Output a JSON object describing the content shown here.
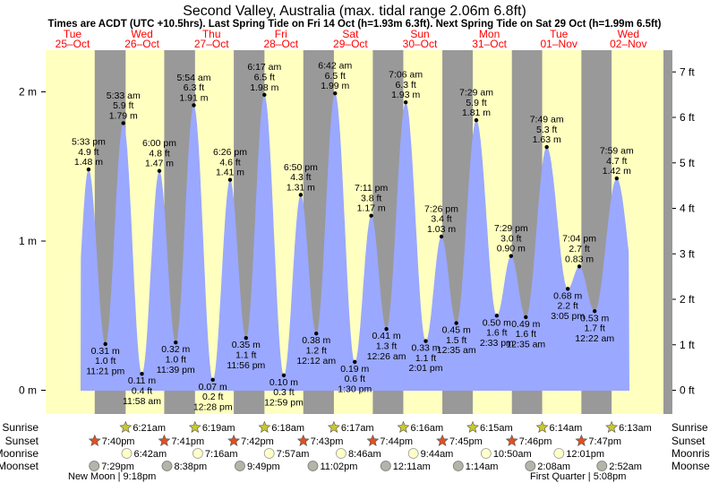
{
  "chart_data": {
    "type": "area",
    "title": "Second Valley, Australia (max. tidal range 2.06m 6.8ft)",
    "subtitle": "Times are ACDT (UTC +10.5hrs). Last Spring Tide on Fri 14 Oct (h=1.93m 6.3ft). Next Spring Tide on Sat 29 Oct (h=1.99m 6.5ft)",
    "days": [
      {
        "dow": "Tue",
        "date": "25–Oct"
      },
      {
        "dow": "Wed",
        "date": "26–Oct"
      },
      {
        "dow": "Thu",
        "date": "27–Oct"
      },
      {
        "dow": "Fri",
        "date": "28–Oct"
      },
      {
        "dow": "Sat",
        "date": "29–Oct"
      },
      {
        "dow": "Sun",
        "date": "30–Oct"
      },
      {
        "dow": "Mon",
        "date": "31–Oct"
      },
      {
        "dow": "Tue",
        "date": "01–Nov"
      },
      {
        "dow": "Wed",
        "date": "02–Nov"
      }
    ],
    "left_axis": {
      "unit": "m",
      "ticks": [
        "0 m",
        "1 m",
        "2 m"
      ],
      "values": [
        0,
        1,
        2
      ]
    },
    "right_axis": {
      "unit": "ft",
      "ticks": [
        "0 ft",
        "1 ft",
        "2 ft",
        "3 ft",
        "4 ft",
        "5 ft",
        "6 ft",
        "7 ft"
      ],
      "values": [
        0,
        1,
        2,
        3,
        4,
        5,
        6,
        7
      ]
    },
    "ylim_m": [
      -0.15,
      2.3
    ],
    "night_periods": [
      [
        "2022-10-25 19:40",
        "2022-10-26 06:21"
      ],
      [
        "2022-10-26 19:41",
        "2022-10-27 06:19"
      ],
      [
        "2022-10-27 19:42",
        "2022-10-28 06:18"
      ],
      [
        "2022-10-28 19:43",
        "2022-10-29 06:17"
      ],
      [
        "2022-10-29 19:44",
        "2022-10-30 06:16"
      ],
      [
        "2022-10-30 19:45",
        "2022-10-31 06:15"
      ],
      [
        "2022-10-31 19:46",
        "2022-11-01 06:14"
      ],
      [
        "2022-11-01 19:47",
        "2022-11-02 06:13"
      ]
    ],
    "extremes": [
      {
        "t": "2022-10-25 17:33",
        "m": 1.48,
        "label": [
          "5:33 pm",
          "4.9 ft",
          "1.48 m"
        ],
        "pos": "above"
      },
      {
        "t": "2022-10-25 23:21",
        "m": 0.31,
        "label": [
          "0.31 m",
          "1.0 ft",
          "11:21 pm"
        ],
        "pos": "below"
      },
      {
        "t": "2022-10-26 05:33",
        "m": 1.79,
        "label": [
          "5:33 am",
          "5.9 ft",
          "1.79 m"
        ],
        "pos": "above"
      },
      {
        "t": "2022-10-26 11:58",
        "m": 0.11,
        "label": [
          "0.11 m",
          "0.4 ft",
          "11:58 am"
        ],
        "pos": "below"
      },
      {
        "t": "2022-10-26 18:00",
        "m": 1.47,
        "label": [
          "6:00 pm",
          "4.8 ft",
          "1.47 m"
        ],
        "pos": "above"
      },
      {
        "t": "2022-10-26 23:39",
        "m": 0.32,
        "label": [
          "0.32 m",
          "1.0 ft",
          "11:39 pm"
        ],
        "pos": "below"
      },
      {
        "t": "2022-10-27 05:54",
        "m": 1.91,
        "label": [
          "5:54 am",
          "6.3 ft",
          "1.91 m"
        ],
        "pos": "above"
      },
      {
        "t": "2022-10-27 12:28",
        "m": 0.07,
        "label": [
          "0.07 m",
          "0.2 ft",
          "12:28 pm"
        ],
        "pos": "below"
      },
      {
        "t": "2022-10-27 18:26",
        "m": 1.41,
        "label": [
          "6:26 pm",
          "4.6 ft",
          "1.41 m"
        ],
        "pos": "above"
      },
      {
        "t": "2022-10-27 23:56",
        "m": 0.35,
        "label": [
          "0.35 m",
          "1.1 ft",
          "11:56 pm"
        ],
        "pos": "below"
      },
      {
        "t": "2022-10-28 06:17",
        "m": 1.98,
        "label": [
          "6:17 am",
          "6.5 ft",
          "1.98 m"
        ],
        "pos": "above"
      },
      {
        "t": "2022-10-28 12:59",
        "m": 0.1,
        "label": [
          "0.10 m",
          "0.3 ft",
          "12:59 pm"
        ],
        "pos": "below"
      },
      {
        "t": "2022-10-28 18:50",
        "m": 1.31,
        "label": [
          "6:50 pm",
          "4.3 ft",
          "1.31 m"
        ],
        "pos": "above"
      },
      {
        "t": "2022-10-29 00:12",
        "m": 0.38,
        "label": [
          "0.38 m",
          "1.2 ft",
          "12:12 am"
        ],
        "pos": "below"
      },
      {
        "t": "2022-10-29 06:42",
        "m": 1.99,
        "label": [
          "6:42 am",
          "6.5 ft",
          "1.99 m"
        ],
        "pos": "above"
      },
      {
        "t": "2022-10-29 13:30",
        "m": 0.19,
        "label": [
          "0.19 m",
          "0.6 ft",
          "1:30 pm"
        ],
        "pos": "below"
      },
      {
        "t": "2022-10-29 19:11",
        "m": 1.17,
        "label": [
          "7:11 pm",
          "3.8 ft",
          "1.17 m"
        ],
        "pos": "above"
      },
      {
        "t": "2022-10-30 00:26",
        "m": 0.41,
        "label": [
          "0.41 m",
          "1.3 ft",
          "12:26 am"
        ],
        "pos": "below"
      },
      {
        "t": "2022-10-30 07:06",
        "m": 1.93,
        "label": [
          "7:06 am",
          "6.3 ft",
          "1.93 m"
        ],
        "pos": "above"
      },
      {
        "t": "2022-10-30 14:01",
        "m": 0.33,
        "label": [
          "0.33 m",
          "1.1 ft",
          "2:01 pm"
        ],
        "pos": "below"
      },
      {
        "t": "2022-10-30 19:26",
        "m": 1.03,
        "label": [
          "7:26 pm",
          "3.4 ft",
          "1.03 m"
        ],
        "pos": "above"
      },
      {
        "t": "2022-10-31 00:35",
        "m": 0.45,
        "label": [
          "0.45 m",
          "1.5 ft",
          "12:35 am"
        ],
        "pos": "below"
      },
      {
        "t": "2022-10-31 07:29",
        "m": 1.81,
        "label": [
          "7:29 am",
          "5.9 ft",
          "1.81 m"
        ],
        "pos": "above"
      },
      {
        "t": "2022-10-31 14:33",
        "m": 0.5,
        "label": [
          "0.50 m",
          "1.6 ft",
          "2:33 pm"
        ],
        "pos": "below"
      },
      {
        "t": "2022-10-31 19:29",
        "m": 0.9,
        "label": [
          "7:29 pm",
          "3.0 ft",
          "0.90 m"
        ],
        "pos": "above"
      },
      {
        "t": "2022-11-01 00:35",
        "m": 0.49,
        "label": [
          "0.49 m",
          "1.6 ft",
          "12:35 am"
        ],
        "pos": "below"
      },
      {
        "t": "2022-11-01 07:49",
        "m": 1.63,
        "label": [
          "7:49 am",
          "5.3 ft",
          "1.63 m"
        ],
        "pos": "above"
      },
      {
        "t": "2022-11-01 15:05",
        "m": 0.68,
        "label": [
          "0.68 m",
          "2.2 ft",
          "3:05 pm"
        ],
        "pos": "below"
      },
      {
        "t": "2022-11-01 19:04",
        "m": 0.83,
        "label": [
          "7:04 pm",
          "2.7 ft",
          "0.83 m"
        ],
        "pos": "above"
      },
      {
        "t": "2022-11-02 00:22",
        "m": 0.53,
        "label": [
          "0.53 m",
          "1.7 ft",
          "12:22 am"
        ],
        "pos": "below"
      },
      {
        "t": "2022-11-02 07:59",
        "m": 1.42,
        "label": [
          "7:59 am",
          "4.7 ft",
          "1.42 m"
        ],
        "pos": "above"
      }
    ],
    "colors": {
      "day": "#ffffc0",
      "night": "#999999",
      "tide": "#9aa8ff",
      "dot": "#000000",
      "date_text": "#ff0000",
      "sun_rise": "#c8c830",
      "sun_set": "#e05020"
    },
    "row_labels": [
      "Sunrise",
      "Sunset",
      "Moonrise",
      "Moonset"
    ],
    "sunrise": [
      {
        "t": "2022-10-26 06:21",
        "label": "6:21am"
      },
      {
        "t": "2022-10-27 06:19",
        "label": "6:19am"
      },
      {
        "t": "2022-10-28 06:18",
        "label": "6:18am"
      },
      {
        "t": "2022-10-29 06:17",
        "label": "6:17am"
      },
      {
        "t": "2022-10-30 06:16",
        "label": "6:16am"
      },
      {
        "t": "2022-10-31 06:15",
        "label": "6:15am"
      },
      {
        "t": "2022-11-01 06:14",
        "label": "6:14am"
      },
      {
        "t": "2022-11-02 06:13",
        "label": "6:13am"
      }
    ],
    "sunset": [
      {
        "t": "2022-10-25 19:40",
        "label": "7:40pm"
      },
      {
        "t": "2022-10-26 19:41",
        "label": "7:41pm"
      },
      {
        "t": "2022-10-27 19:42",
        "label": "7:42pm"
      },
      {
        "t": "2022-10-28 19:43",
        "label": "7:43pm"
      },
      {
        "t": "2022-10-29 19:44",
        "label": "7:44pm"
      },
      {
        "t": "2022-10-30 19:45",
        "label": "7:45pm"
      },
      {
        "t": "2022-10-31 19:46",
        "label": "7:46pm"
      },
      {
        "t": "2022-11-01 19:47",
        "label": "7:47pm"
      }
    ],
    "moonrise": [
      {
        "t": "2022-10-26 06:42",
        "label": "6:42am"
      },
      {
        "t": "2022-10-27 07:16",
        "label": "7:16am"
      },
      {
        "t": "2022-10-28 07:57",
        "label": "7:57am"
      },
      {
        "t": "2022-10-29 08:46",
        "label": "8:46am"
      },
      {
        "t": "2022-10-30 09:44",
        "label": "9:44am"
      },
      {
        "t": "2022-10-31 10:50",
        "label": "10:50am"
      },
      {
        "t": "2022-11-01 12:01",
        "label": "12:01pm"
      }
    ],
    "moonset": [
      {
        "t": "2022-10-25 19:29",
        "label": "7:29pm"
      },
      {
        "t": "2022-10-26 20:38",
        "label": "8:38pm"
      },
      {
        "t": "2022-10-27 21:49",
        "label": "9:49pm"
      },
      {
        "t": "2022-10-28 23:02",
        "label": "11:02pm"
      },
      {
        "t": "2022-10-30 00:11",
        "label": "12:11am"
      },
      {
        "t": "2022-10-31 01:14",
        "label": "1:14am"
      },
      {
        "t": "2022-11-01 02:08",
        "label": "2:08am"
      },
      {
        "t": "2022-11-02 02:52",
        "label": "2:52am"
      }
    ],
    "moon_phases": [
      {
        "t": "2022-10-25 21:18",
        "label": "New Moon | 9:18pm"
      },
      {
        "t": "2022-11-01 17:08",
        "label": "First Quarter | 5:08pm"
      }
    ]
  }
}
